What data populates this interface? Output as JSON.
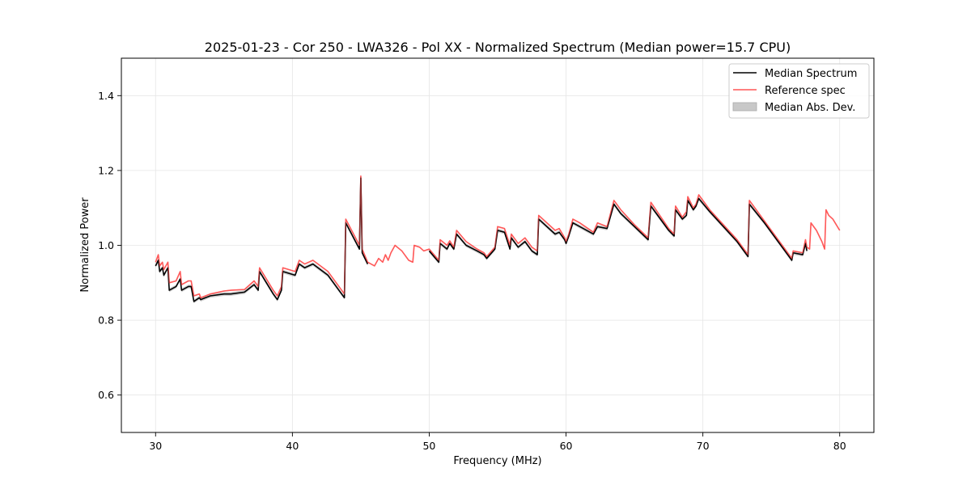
{
  "chart_data": {
    "type": "line",
    "title": "2025-01-23 - Cor 250 - LWA326 - Pol XX - Normalized Spectrum (Median power=15.7 CPU)",
    "xlabel": "Frequency (MHz)",
    "ylabel": "Normalized Power",
    "xlim": [
      27.5,
      82.5
    ],
    "ylim": [
      0.5,
      1.5
    ],
    "x_ticks": [
      30,
      40,
      50,
      60,
      70,
      80
    ],
    "y_ticks": [
      0.6,
      0.8,
      1.0,
      1.2,
      1.4
    ],
    "grid": true,
    "legend_position": "top-right",
    "legend": [
      {
        "label": "Median Spectrum",
        "kind": "line",
        "color": "#000000"
      },
      {
        "label": "Reference spec",
        "kind": "line",
        "color": "#ff5555"
      },
      {
        "label": "Median Abs. Dev.",
        "kind": "patch",
        "color": "#c8c8c8"
      }
    ],
    "series": [
      {
        "name": "Median Spectrum",
        "color": "#000000",
        "mad": 0.005,
        "x": [
          30.0,
          30.2,
          30.3,
          30.5,
          30.6,
          30.9,
          31.0,
          31.5,
          31.8,
          31.9,
          32.4,
          32.6,
          32.8,
          33.2,
          33.3,
          34.0,
          35.0,
          35.5,
          36.5,
          37.2,
          37.5,
          37.6,
          38.6,
          38.9,
          39.2,
          39.3,
          40.2,
          40.5,
          40.9,
          41.5,
          42.6,
          43.8,
          43.9,
          44.9,
          45.0,
          45.1,
          45.5
        ],
        "y": [
          0.945,
          0.96,
          0.93,
          0.94,
          0.92,
          0.94,
          0.88,
          0.89,
          0.91,
          0.88,
          0.89,
          0.89,
          0.85,
          0.86,
          0.855,
          0.865,
          0.87,
          0.87,
          0.875,
          0.895,
          0.88,
          0.93,
          0.87,
          0.855,
          0.88,
          0.93,
          0.92,
          0.95,
          0.94,
          0.95,
          0.92,
          0.86,
          1.06,
          0.99,
          1.18,
          0.98,
          0.95
        ]
      },
      {
        "name": "Median Spectrum",
        "color": "#000000",
        "mad": 0.005,
        "x": [
          50.0,
          50.7,
          50.8,
          51.3,
          51.5,
          51.8,
          52.0,
          52.7,
          53.5,
          54.0,
          54.2,
          54.8,
          55.0,
          55.5,
          55.9,
          56.0,
          56.5,
          57.0,
          57.5,
          57.9,
          58.0,
          59.2,
          59.5,
          59.9,
          60.0,
          60.2,
          60.5,
          61.0,
          62.0,
          62.3,
          63.0,
          63.5,
          64.0,
          65.0,
          66.0,
          66.2,
          67.5,
          67.9,
          68.0,
          68.5,
          68.8,
          68.9,
          69.3,
          69.5,
          69.7,
          70.5,
          71.5,
          72.5,
          73.3,
          73.4,
          74.5,
          75.5,
          76.2,
          76.5,
          76.6,
          77.3,
          77.5,
          77.6
        ],
        "y": [
          0.985,
          0.955,
          1.005,
          0.99,
          1.005,
          0.99,
          1.03,
          1.0,
          0.985,
          0.975,
          0.965,
          0.99,
          1.04,
          1.035,
          0.99,
          1.02,
          0.995,
          1.01,
          0.985,
          0.975,
          1.07,
          1.03,
          1.035,
          1.015,
          1.005,
          1.025,
          1.06,
          1.05,
          1.03,
          1.05,
          1.045,
          1.11,
          1.085,
          1.05,
          1.015,
          1.105,
          1.04,
          1.025,
          1.095,
          1.07,
          1.08,
          1.12,
          1.095,
          1.105,
          1.125,
          1.09,
          1.05,
          1.01,
          0.97,
          1.11,
          1.06,
          1.01,
          0.975,
          0.96,
          0.98,
          0.975,
          1.005,
          0.985
        ]
      }
    ],
    "reference": {
      "name": "Reference spec",
      "color": "#ff5555",
      "x": [
        30.0,
        30.2,
        30.3,
        30.5,
        30.6,
        30.9,
        31.0,
        31.5,
        31.8,
        31.9,
        32.4,
        32.6,
        32.8,
        33.2,
        33.3,
        34.0,
        35.0,
        35.5,
        36.5,
        37.2,
        37.5,
        37.6,
        38.6,
        38.9,
        39.2,
        39.3,
        40.2,
        40.5,
        40.9,
        41.5,
        42.6,
        43.8,
        43.9,
        44.9,
        45.0,
        45.1,
        45.5,
        46.0,
        46.3,
        46.6,
        46.8,
        47.0,
        47.2,
        47.5,
        48.0,
        48.5,
        48.8,
        48.9,
        49.3,
        49.6,
        50.0,
        50.7,
        50.8,
        51.3,
        51.5,
        51.8,
        52.0,
        52.7,
        53.5,
        54.0,
        54.2,
        54.8,
        55.0,
        55.5,
        55.9,
        56.0,
        56.5,
        57.0,
        57.5,
        57.9,
        58.0,
        59.2,
        59.5,
        59.9,
        60.0,
        60.2,
        60.5,
        61.0,
        62.0,
        62.3,
        63.0,
        63.5,
        64.0,
        65.0,
        66.0,
        66.2,
        67.5,
        67.9,
        68.0,
        68.5,
        68.8,
        68.9,
        69.3,
        69.5,
        69.7,
        70.5,
        71.5,
        72.5,
        73.3,
        73.4,
        74.5,
        75.5,
        76.2,
        76.5,
        76.6,
        77.3,
        77.5,
        77.6,
        77.8,
        77.9,
        78.3,
        78.7,
        78.9,
        79.0,
        79.2,
        79.5,
        80.0
      ],
      "y": [
        0.955,
        0.975,
        0.945,
        0.955,
        0.935,
        0.955,
        0.9,
        0.905,
        0.93,
        0.895,
        0.905,
        0.905,
        0.865,
        0.87,
        0.86,
        0.87,
        0.878,
        0.88,
        0.882,
        0.905,
        0.89,
        0.94,
        0.88,
        0.865,
        0.89,
        0.94,
        0.93,
        0.96,
        0.95,
        0.96,
        0.93,
        0.87,
        1.07,
        1.0,
        1.185,
        0.99,
        0.955,
        0.945,
        0.965,
        0.955,
        0.975,
        0.96,
        0.98,
        1.0,
        0.985,
        0.96,
        0.955,
        1.0,
        0.995,
        0.985,
        0.99,
        0.96,
        1.015,
        1.0,
        1.012,
        0.995,
        1.04,
        1.01,
        0.99,
        0.98,
        0.97,
        0.995,
        1.05,
        1.045,
        1.0,
        1.03,
        1.005,
        1.02,
        0.995,
        0.985,
        1.08,
        1.04,
        1.045,
        1.02,
        1.01,
        1.03,
        1.07,
        1.06,
        1.035,
        1.06,
        1.05,
        1.12,
        1.095,
        1.055,
        1.02,
        1.115,
        1.045,
        1.03,
        1.105,
        1.075,
        1.09,
        1.13,
        1.1,
        1.11,
        1.135,
        1.095,
        1.055,
        1.015,
        0.975,
        1.12,
        1.065,
        1.015,
        0.98,
        0.965,
        0.985,
        0.98,
        1.015,
        0.995,
        0.99,
        1.06,
        1.04,
        1.01,
        0.99,
        1.095,
        1.08,
        1.07,
        1.04
      ]
    }
  }
}
